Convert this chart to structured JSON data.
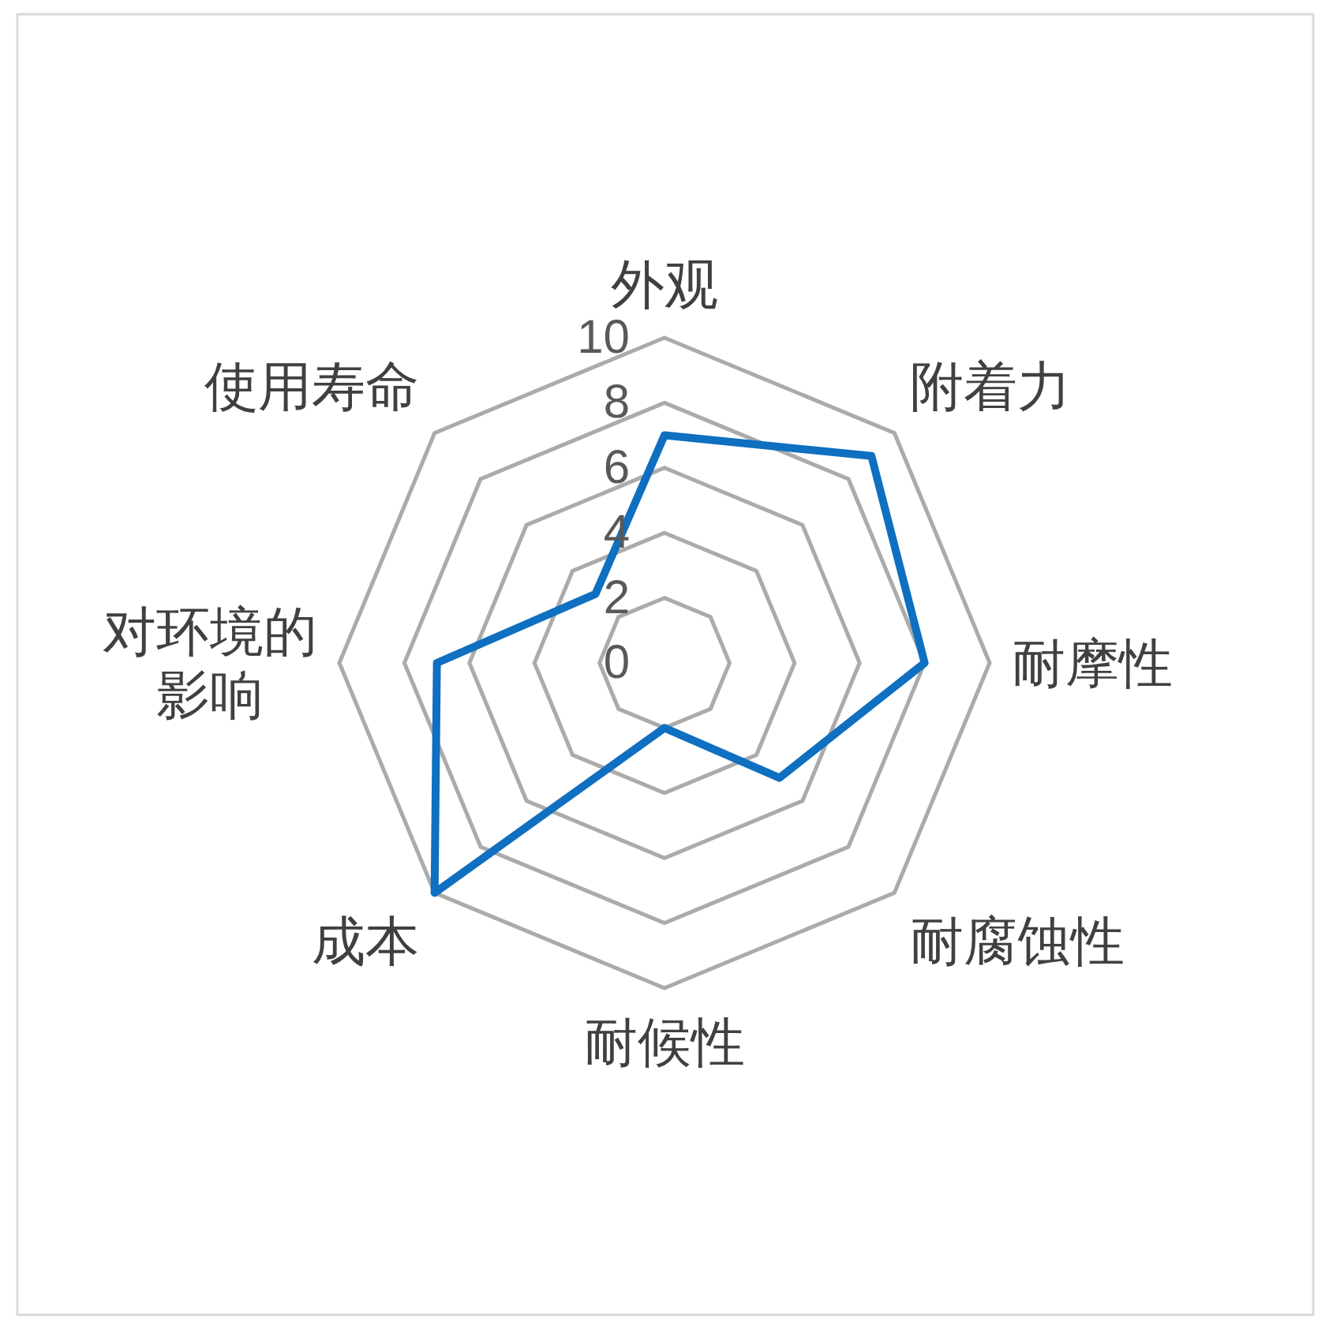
{
  "chart_data": {
    "type": "radar",
    "categories": [
      "外观",
      "附着力",
      "耐摩性",
      "耐腐蚀性",
      "耐候性",
      "成本",
      "对环境的影响",
      "使用寿命"
    ],
    "series": [
      {
        "color": "#0f6fc0",
        "values": [
          7,
          9,
          8,
          5,
          2,
          10,
          7,
          3
        ]
      }
    ],
    "ylim": [
      0,
      10
    ],
    "yticks": [
      0,
      2,
      4,
      6,
      8,
      10
    ],
    "grid": true,
    "marker": "none",
    "line_style": "solid"
  }
}
